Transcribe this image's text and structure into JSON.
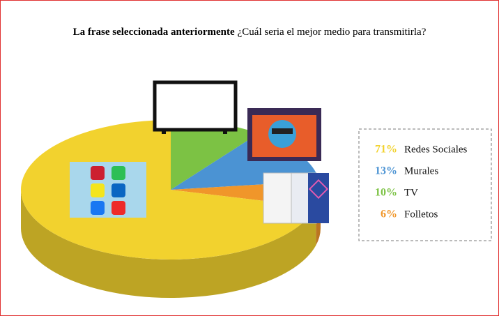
{
  "chart_data": {
    "type": "pie3d",
    "title": "La frase seleccionada anteriormente",
    "subtitle": "¿Cuál seria el mejor medio para transmitirla?",
    "categories": [
      "Redes Sociales",
      "Murales",
      "TV",
      "Folletos"
    ],
    "values": [
      71,
      13,
      10,
      6
    ],
    "value_labels": [
      "71%",
      "13%",
      "10%",
      "6%"
    ],
    "colors": [
      "#f2d22e",
      "#4b93d3",
      "#7cc244",
      "#f0962a"
    ],
    "legend": "right"
  }
}
